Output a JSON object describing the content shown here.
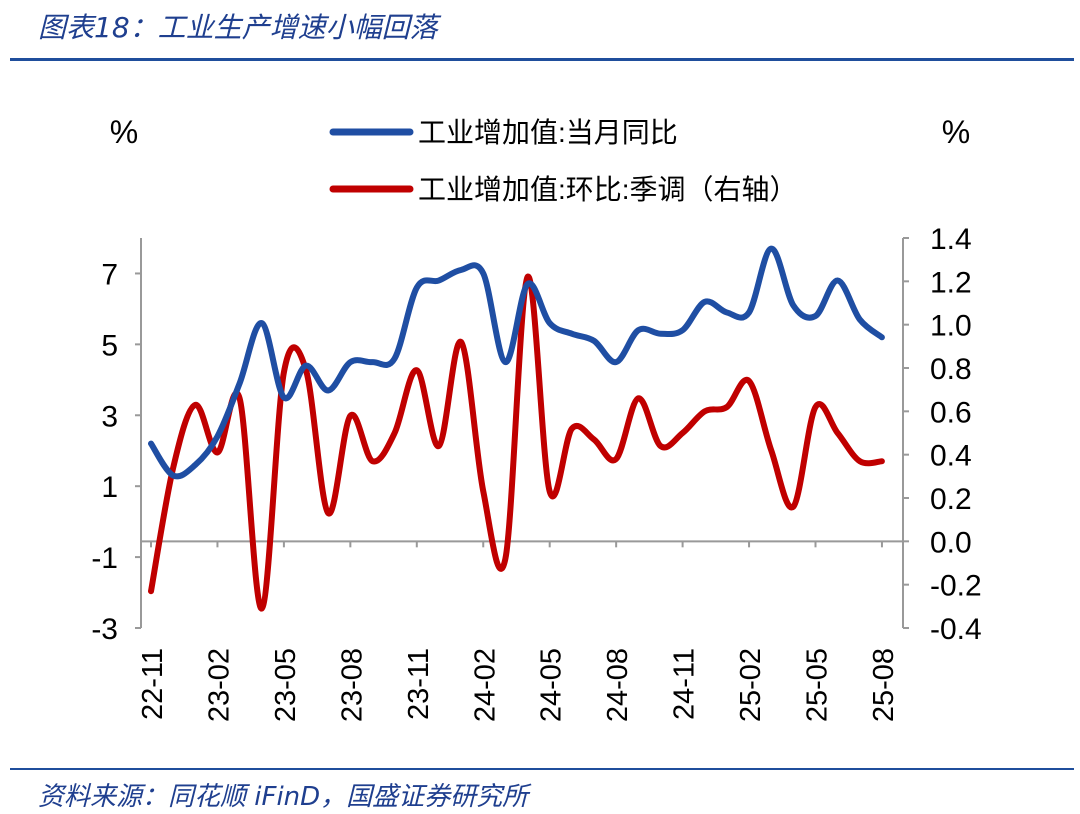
{
  "figure": {
    "title": "图表18：工业生产增速小幅回落",
    "source": "资料来源：同花顺 iFinD，国盛证券研究所"
  },
  "chart_data": {
    "type": "line",
    "left_unit": "%",
    "right_unit": "%",
    "x_ticks": [
      "22-11",
      "23-02",
      "23-05",
      "23-08",
      "23-11",
      "24-02",
      "24-05",
      "24-08",
      "24-11",
      "25-02",
      "25-05",
      "25-08"
    ],
    "x": [
      "22-11",
      "22-12",
      "23-01",
      "23-02",
      "23-03",
      "23-04",
      "23-05",
      "23-06",
      "23-07",
      "23-08",
      "23-09",
      "23-10",
      "23-11",
      "23-12",
      "24-01",
      "24-02",
      "24-03",
      "24-04",
      "24-05",
      "24-06",
      "24-07",
      "24-08",
      "24-09",
      "24-10",
      "24-11",
      "24-12",
      "25-01",
      "25-02",
      "25-03",
      "25-04",
      "25-05",
      "25-06",
      "25-07",
      "25-08"
    ],
    "left_axis": {
      "ylim": [
        -3,
        8
      ],
      "ticks": [
        7,
        5,
        3,
        1,
        -1,
        -3
      ]
    },
    "right_axis": {
      "ylim": [
        -0.4,
        1.4
      ],
      "ticks": [
        1.4,
        1.2,
        1.0,
        0.8,
        0.6,
        0.4,
        0.2,
        0.0,
        -0.2,
        -0.4
      ]
    },
    "series": [
      {
        "name": "工业增加值:当月同比",
        "axis": "left",
        "color": "#1f4ea3",
        "values": [
          2.2,
          1.3,
          1.6,
          2.4,
          3.9,
          5.6,
          3.5,
          4.4,
          3.7,
          4.5,
          4.5,
          4.6,
          6.6,
          6.8,
          7.1,
          7.0,
          4.5,
          6.7,
          5.6,
          5.3,
          5.1,
          4.5,
          5.4,
          5.3,
          5.4,
          6.2,
          5.9,
          5.9,
          7.7,
          6.1,
          5.8,
          6.8,
          5.7,
          5.2
        ]
      },
      {
        "name": "工业增加值:环比:季调（右轴）",
        "axis": "right",
        "color": "#c00000",
        "values": [
          -0.23,
          0.34,
          0.63,
          0.41,
          0.66,
          -0.31,
          0.78,
          0.79,
          0.13,
          0.58,
          0.37,
          0.5,
          0.79,
          0.44,
          0.92,
          0.23,
          -0.08,
          1.22,
          0.23,
          0.52,
          0.47,
          0.38,
          0.66,
          0.44,
          0.5,
          0.6,
          0.62,
          0.74,
          0.42,
          0.16,
          0.62,
          0.5,
          0.37,
          0.37
        ]
      }
    ]
  }
}
